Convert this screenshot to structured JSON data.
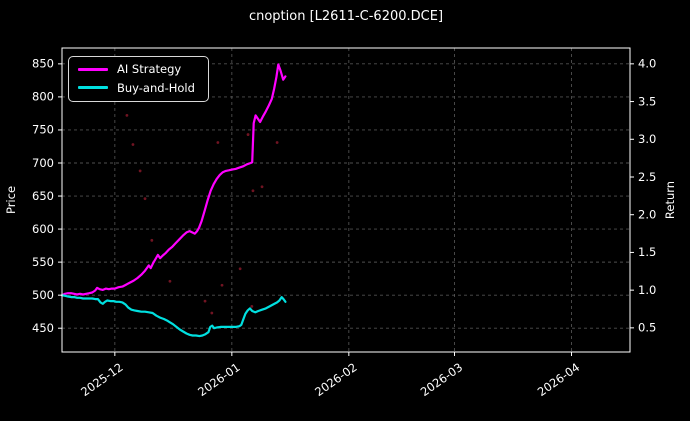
{
  "title": "cnoption [L2611-C-6200.DCE]",
  "legend": {
    "items": [
      {
        "label": "AI Strategy",
        "color": "#ff00ff"
      },
      {
        "label": "Buy-and-Hold",
        "color": "#00e0e0"
      }
    ]
  },
  "chart_data": {
    "type": "line",
    "title": "cnoption [L2611-C-6200.DCE]",
    "ylabel_left": "Price",
    "ylabel_right": "Return",
    "grid": true,
    "legend_position": "upper left",
    "background": "#000000",
    "grid_color": "#5f5f5f",
    "spine_color": "#ffffff",
    "text_color": "#ffffff",
    "x": {
      "unit": "days since 2025-11-17",
      "min": 0,
      "max": 150.5,
      "ticks": [
        {
          "day": 14,
          "label": "2025-12"
        },
        {
          "day": 45,
          "label": "2026-01"
        },
        {
          "day": 76,
          "label": "2026-02"
        },
        {
          "day": 104,
          "label": "2026-03"
        },
        {
          "day": 135,
          "label": "2026-04"
        }
      ]
    },
    "y_left": {
      "min": 414,
      "max": 874,
      "ticks": [
        450,
        500,
        550,
        600,
        650,
        700,
        750,
        800,
        850
      ]
    },
    "y_right": {
      "min": 0.18,
      "max": 4.21,
      "ticks": [
        0.5,
        1.0,
        1.5,
        2.0,
        2.5,
        3.0,
        3.5,
        4.0
      ]
    },
    "series": [
      {
        "name": "AI Strategy",
        "color": "#ff00ff",
        "axis": "left",
        "points": [
          [
            0,
            500
          ],
          [
            0.8,
            502
          ],
          [
            1.6,
            503
          ],
          [
            2.4,
            503
          ],
          [
            3.2,
            502
          ],
          [
            4,
            501
          ],
          [
            4.8,
            502
          ],
          [
            5.6,
            501
          ],
          [
            6.4,
            502
          ],
          [
            7.2,
            503
          ],
          [
            8,
            504
          ],
          [
            8.8,
            507
          ],
          [
            9.3,
            511
          ],
          [
            10,
            509
          ],
          [
            10.8,
            508
          ],
          [
            11.6,
            510
          ],
          [
            12.4,
            509
          ],
          [
            13.2,
            510
          ],
          [
            14,
            510
          ],
          [
            15,
            512
          ],
          [
            16,
            513
          ],
          [
            17,
            516
          ],
          [
            18,
            519
          ],
          [
            19,
            522
          ],
          [
            20,
            526
          ],
          [
            21,
            531
          ],
          [
            22,
            537
          ],
          [
            23,
            545
          ],
          [
            23.5,
            541
          ],
          [
            24.2,
            549
          ],
          [
            25,
            557
          ],
          [
            25.4,
            561
          ],
          [
            26,
            556
          ],
          [
            26.7,
            560
          ],
          [
            27.5,
            564
          ],
          [
            28.3,
            569
          ],
          [
            29.2,
            573
          ],
          [
            30,
            578
          ],
          [
            31,
            584
          ],
          [
            32,
            590
          ],
          [
            33,
            595
          ],
          [
            33.8,
            597
          ],
          [
            34.5,
            595
          ],
          [
            35.2,
            593
          ],
          [
            35.8,
            597
          ],
          [
            36.3,
            602
          ],
          [
            37,
            612
          ],
          [
            37.8,
            628
          ],
          [
            38.6,
            644
          ],
          [
            39.4,
            658
          ],
          [
            40.2,
            668
          ],
          [
            41,
            676
          ],
          [
            41.8,
            682
          ],
          [
            42.6,
            686
          ],
          [
            43.4,
            688
          ],
          [
            44.2,
            689
          ],
          [
            45,
            690
          ],
          [
            46,
            691
          ],
          [
            47,
            693
          ],
          [
            48,
            695
          ],
          [
            49,
            698
          ],
          [
            50,
            700
          ],
          [
            50.4,
            701
          ],
          [
            50.8,
            760
          ],
          [
            51.3,
            772
          ],
          [
            52,
            766
          ],
          [
            52.5,
            762
          ],
          [
            53.2,
            770
          ],
          [
            54,
            778
          ],
          [
            54.8,
            787
          ],
          [
            55.6,
            797
          ],
          [
            56.2,
            812
          ],
          [
            56.8,
            830
          ],
          [
            57.3,
            849
          ],
          [
            57.9,
            840
          ],
          [
            58.6,
            826
          ],
          [
            59.2,
            831
          ]
        ]
      },
      {
        "name": "Buy-and-Hold",
        "color": "#00e0e0",
        "axis": "left",
        "points": [
          [
            0,
            500
          ],
          [
            0.8,
            499
          ],
          [
            1.6,
            498
          ],
          [
            2.4,
            497
          ],
          [
            3.2,
            497
          ],
          [
            4,
            496
          ],
          [
            4.8,
            496
          ],
          [
            5.6,
            495
          ],
          [
            6.4,
            495
          ],
          [
            7.2,
            495
          ],
          [
            8,
            495
          ],
          [
            8.8,
            494
          ],
          [
            9.5,
            494
          ],
          [
            10.2,
            489
          ],
          [
            10.8,
            487
          ],
          [
            11.4,
            490
          ],
          [
            12,
            492
          ],
          [
            12.8,
            491
          ],
          [
            13.6,
            491
          ],
          [
            14.4,
            490
          ],
          [
            15.2,
            490
          ],
          [
            16,
            489
          ],
          [
            16.8,
            486
          ],
          [
            17.6,
            481
          ],
          [
            18.4,
            478
          ],
          [
            19.2,
            477
          ],
          [
            20,
            476
          ],
          [
            21,
            475
          ],
          [
            22,
            475
          ],
          [
            23,
            474
          ],
          [
            24,
            473
          ],
          [
            25,
            469
          ],
          [
            26,
            466
          ],
          [
            27,
            464
          ],
          [
            28,
            461
          ],
          [
            28.6,
            459
          ],
          [
            29.4,
            456
          ],
          [
            30.3,
            452
          ],
          [
            31.2,
            448
          ],
          [
            32.1,
            445
          ],
          [
            33,
            442
          ],
          [
            33.8,
            440
          ],
          [
            34.6,
            439
          ],
          [
            35.5,
            439
          ],
          [
            36.4,
            438
          ],
          [
            37.2,
            439
          ],
          [
            38,
            441
          ],
          [
            38.8,
            444
          ],
          [
            39.3,
            452
          ],
          [
            39.8,
            454
          ],
          [
            40.3,
            450
          ],
          [
            41,
            451
          ],
          [
            42,
            452
          ],
          [
            43,
            452
          ],
          [
            44,
            452
          ],
          [
            45,
            452
          ],
          [
            46,
            452
          ],
          [
            47,
            453
          ],
          [
            47.5,
            455
          ],
          [
            48,
            463
          ],
          [
            48.6,
            472
          ],
          [
            49.2,
            477
          ],
          [
            49.8,
            480
          ],
          [
            50.4,
            476
          ],
          [
            51.2,
            474
          ],
          [
            52,
            476
          ],
          [
            53,
            478
          ],
          [
            54,
            480
          ],
          [
            55,
            483
          ],
          [
            56,
            486
          ],
          [
            57,
            489
          ],
          [
            57.6,
            492
          ],
          [
            58.2,
            497
          ],
          [
            58.7,
            494
          ],
          [
            59.2,
            490
          ]
        ]
      }
    ],
    "scatter": {
      "name": "trade-markers",
      "color": "#7d1626",
      "points": [
        [
          17.2,
          772
        ],
        [
          18.8,
          728
        ],
        [
          20.7,
          688
        ],
        [
          22,
          646
        ],
        [
          23.8,
          583
        ],
        [
          28.6,
          521
        ],
        [
          37.9,
          491
        ],
        [
          39.7,
          473
        ],
        [
          41.3,
          731
        ],
        [
          42.4,
          515
        ],
        [
          47.2,
          540
        ],
        [
          49.3,
          743
        ],
        [
          50.3,
          483
        ],
        [
          50.6,
          658
        ],
        [
          53,
          664
        ],
        [
          57,
          731
        ]
      ]
    }
  }
}
